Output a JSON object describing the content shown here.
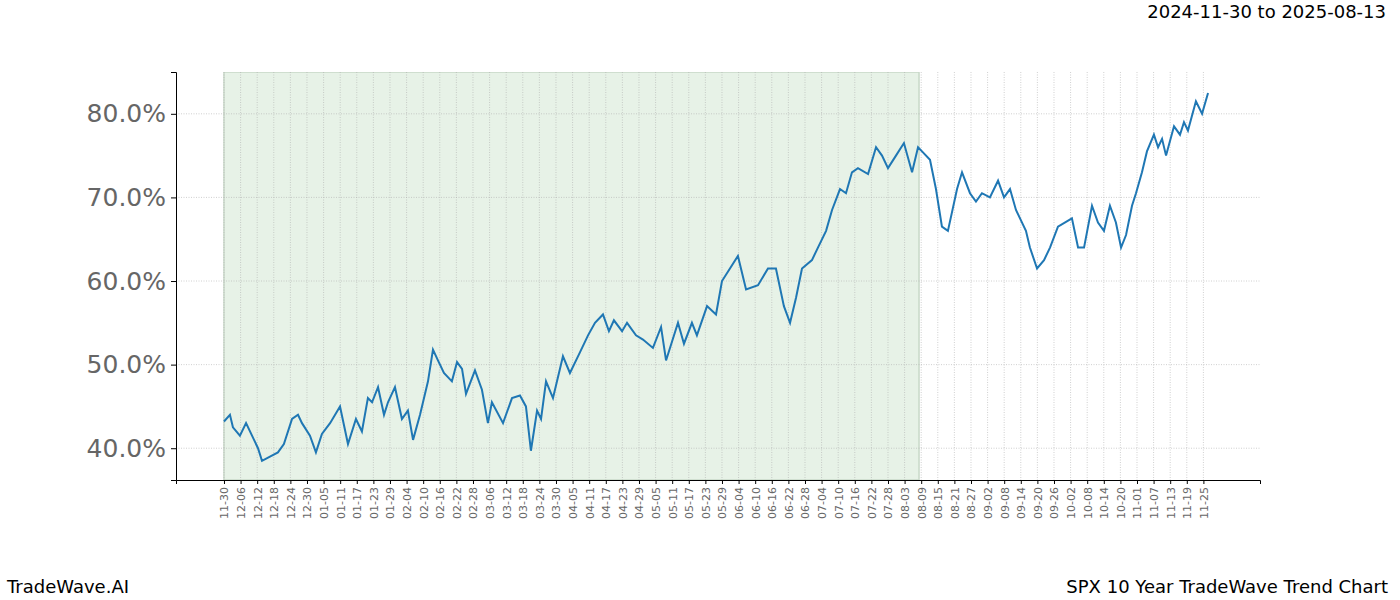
{
  "chart_data": {
    "type": "line",
    "title": "SPX 10 Year TradeWave Trend Chart",
    "subtitle": "2024-11-30 to 2025-08-13",
    "watermark": "TradeWave.AI",
    "color": "#1f77b4",
    "grid": true,
    "shaded_xlim": [
      0,
      41.87
    ],
    "xlim": [
      -2.89,
      62.41
    ],
    "ylim": [
      36.2,
      85.0
    ],
    "xticks": [
      {
        "value": 0,
        "label": "11-30"
      },
      {
        "value": 1,
        "label": "12-06"
      },
      {
        "value": 2,
        "label": "12-12"
      },
      {
        "value": 3,
        "label": "12-18"
      },
      {
        "value": 4,
        "label": "12-24"
      },
      {
        "value": 5,
        "label": "12-30"
      },
      {
        "value": 6,
        "label": "01-05"
      },
      {
        "value": 7,
        "label": "01-11"
      },
      {
        "value": 8,
        "label": "01-17"
      },
      {
        "value": 9,
        "label": "01-23"
      },
      {
        "value": 10,
        "label": "01-29"
      },
      {
        "value": 11,
        "label": "02-04"
      },
      {
        "value": 12,
        "label": "02-10"
      },
      {
        "value": 13,
        "label": "02-16"
      },
      {
        "value": 14,
        "label": "02-22"
      },
      {
        "value": 15,
        "label": "02-28"
      },
      {
        "value": 16,
        "label": "03-06"
      },
      {
        "value": 17,
        "label": "03-12"
      },
      {
        "value": 18,
        "label": "03-18"
      },
      {
        "value": 19,
        "label": "03-24"
      },
      {
        "value": 20,
        "label": "03-30"
      },
      {
        "value": 21,
        "label": "04-05"
      },
      {
        "value": 22,
        "label": "04-11"
      },
      {
        "value": 23,
        "label": "04-17"
      },
      {
        "value": 24,
        "label": "04-23"
      },
      {
        "value": 25,
        "label": "04-29"
      },
      {
        "value": 26,
        "label": "05-05"
      },
      {
        "value": 27,
        "label": "05-11"
      },
      {
        "value": 28,
        "label": "05-17"
      },
      {
        "value": 29,
        "label": "05-23"
      },
      {
        "value": 30,
        "label": "05-29"
      },
      {
        "value": 31,
        "label": "06-04"
      },
      {
        "value": 32,
        "label": "06-10"
      },
      {
        "value": 33,
        "label": "06-16"
      },
      {
        "value": 34,
        "label": "06-22"
      },
      {
        "value": 35,
        "label": "06-28"
      },
      {
        "value": 36,
        "label": "07-04"
      },
      {
        "value": 37,
        "label": "07-10"
      },
      {
        "value": 38,
        "label": "07-16"
      },
      {
        "value": 39,
        "label": "07-22"
      },
      {
        "value": 40,
        "label": "07-28"
      },
      {
        "value": 41,
        "label": "08-03"
      },
      {
        "value": 42,
        "label": "08-09"
      },
      {
        "value": 43,
        "label": "08-15"
      },
      {
        "value": 44,
        "label": "08-21"
      },
      {
        "value": 45,
        "label": "08-27"
      },
      {
        "value": 46,
        "label": "09-02"
      },
      {
        "value": 47,
        "label": "09-08"
      },
      {
        "value": 48,
        "label": "09-14"
      },
      {
        "value": 49,
        "label": "09-20"
      },
      {
        "value": 50,
        "label": "09-26"
      },
      {
        "value": 51,
        "label": "10-02"
      },
      {
        "value": 52,
        "label": "10-08"
      },
      {
        "value": 53,
        "label": "10-14"
      },
      {
        "value": 54,
        "label": "10-20"
      },
      {
        "value": 55,
        "label": "11-01"
      },
      {
        "value": 56,
        "label": "11-07"
      },
      {
        "value": 57,
        "label": "11-13"
      },
      {
        "value": 58,
        "label": "11-19"
      },
      {
        "value": 59,
        "label": "11-25"
      }
    ],
    "yticks": [
      {
        "value": 40,
        "label": "40.0%"
      },
      {
        "value": 50,
        "label": "50.0%"
      },
      {
        "value": 60,
        "label": "60.0%"
      },
      {
        "value": 70,
        "label": "70.0%"
      },
      {
        "value": 80,
        "label": "80.0%"
      }
    ],
    "x": [
      0,
      0.36,
      0.54,
      0.96,
      1.33,
      1.69,
      2.05,
      2.29,
      2.77,
      3.25,
      3.61,
      4.1,
      4.46,
      4.7,
      5.18,
      5.54,
      5.9,
      6.39,
      6.99,
      7.47,
      7.95,
      8.31,
      8.67,
      8.92,
      9.28,
      9.64,
      9.88,
      10.3,
      10.72,
      11.08,
      11.39,
      11.81,
      12.29,
      12.59,
      12.89,
      13.25,
      13.73,
      14.04,
      14.34,
      14.58,
      15.12,
      15.54,
      15.9,
      16.14,
      16.81,
      17.35,
      17.83,
      18.19,
      18.49,
      18.86,
      19.1,
      19.4,
      19.82,
      20.42,
      20.84,
      21.45,
      21.93,
      22.35,
      22.83,
      23.19,
      23.49,
      23.98,
      24.28,
      24.82,
      25.24,
      25.84,
      26.33,
      26.63,
      27.35,
      27.71,
      28.19,
      28.49,
      29.1,
      29.64,
      30,
      30.96,
      31.45,
      32.17,
      32.77,
      33.25,
      33.73,
      34.1,
      34.46,
      34.82,
      35.42,
      35.78,
      36.27,
      36.63,
      37.11,
      37.47,
      37.83,
      38.19,
      38.8,
      39.28,
      39.64,
      40,
      40.48,
      40.96,
      41.45,
      41.81,
      42.05,
      42.53,
      42.89,
      43.25,
      43.61,
      44.16,
      44.46,
      44.94,
      45.3,
      45.66,
      46.14,
      46.63,
      46.99,
      47.35,
      47.71,
      48.31,
      48.55,
      48.98,
      49.4,
      49.76,
      50.24,
      51.08,
      51.45,
      51.81,
      52.29,
      52.65,
      53.01,
      53.37,
      53.73,
      54.04,
      54.34,
      54.7,
      54.94,
      55.3,
      55.6,
      56.02,
      56.27,
      56.51,
      56.75,
      57.23,
      57.59,
      57.83,
      58.07,
      58.55,
      58.92,
      59.28
    ],
    "values": [
      43.2,
      44,
      42.5,
      41.5,
      43,
      41.5,
      40,
      38.5,
      39,
      39.5,
      40.5,
      43.5,
      44,
      43,
      41.5,
      39.5,
      41.7,
      43,
      45,
      40.5,
      43.5,
      42,
      46,
      45.5,
      47.3,
      44,
      45.5,
      47.3,
      43.5,
      44.5,
      41,
      44,
      48,
      51.8,
      50.5,
      49,
      48,
      50.3,
      49.5,
      46.5,
      49.3,
      47,
      43,
      45.5,
      43,
      46,
      46.3,
      45,
      39.7,
      44.5,
      43.5,
      48,
      46,
      51,
      49,
      51.5,
      53.5,
      55,
      56,
      54,
      55.3,
      54,
      55,
      53.5,
      53,
      52,
      54.5,
      50.5,
      55,
      52.5,
      55,
      53.5,
      57,
      56,
      60,
      63,
      59,
      59.5,
      61.5,
      61.5,
      57,
      55,
      58,
      61.5,
      62.5,
      64,
      66,
      68.5,
      71,
      70.5,
      73,
      73.5,
      72.8,
      76,
      75,
      73.5,
      75,
      76.5,
      73,
      76,
      75.5,
      74.5,
      71,
      66.5,
      66,
      71,
      73,
      70.5,
      69.5,
      70.5,
      70,
      72,
      70,
      71,
      68.5,
      66,
      64,
      61.5,
      62.5,
      64,
      66.5,
      67.5,
      64,
      64,
      69,
      67,
      66,
      69,
      67,
      64,
      65.5,
      69,
      70.5,
      73,
      75.5,
      77.5,
      76,
      77,
      75,
      78.5,
      77.5,
      79,
      78,
      81.5,
      80,
      82.5
    ]
  }
}
